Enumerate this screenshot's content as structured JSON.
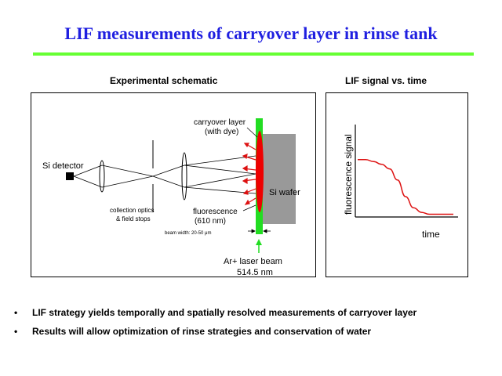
{
  "title": "LIF measurements of carryover layer in rinse tank",
  "schematic": {
    "heading": "Experimental schematic",
    "si_detector": "Si detector",
    "collection_optics": [
      "collection optics",
      "& field stops"
    ],
    "carryover_layer": [
      "carryover layer",
      "(with dye)"
    ],
    "fluorescence": [
      "fluorescence",
      "(610 nm)"
    ],
    "si_wafer": "Si wafer",
    "beam_width": "beam width: 20-50 μm",
    "laser_beam": [
      "Ar+ laser beam",
      "514.5 nm"
    ]
  },
  "signal_panel": {
    "heading": "LIF signal vs. time",
    "ylabel": "fluorescence signal",
    "xlabel": "time"
  },
  "chart_data": {
    "type": "line",
    "title": "LIF signal vs. time",
    "xlabel": "time",
    "ylabel": "fluorescence signal",
    "grid": false,
    "series": [
      {
        "values": [
          0.62,
          0.62,
          0.6,
          0.57,
          0.52,
          0.4,
          0.22,
          0.1,
          0.05,
          0.03,
          0.03,
          0.03,
          0.03
        ]
      }
    ]
  },
  "colors": {
    "title": "#1f1fe0",
    "rule": "#66ff33",
    "curve": "#dd1111",
    "laser": "#22dd22",
    "layer": "#ee0000",
    "wafer": "#999999"
  },
  "bullets": [
    {
      "marker": "•",
      "text": "LIF strategy yields temporally and spatially resolved measurements of carryover layer"
    },
    {
      "marker": "•",
      "text": "Results will allow optimization of rinse strategies and conservation of water"
    }
  ]
}
